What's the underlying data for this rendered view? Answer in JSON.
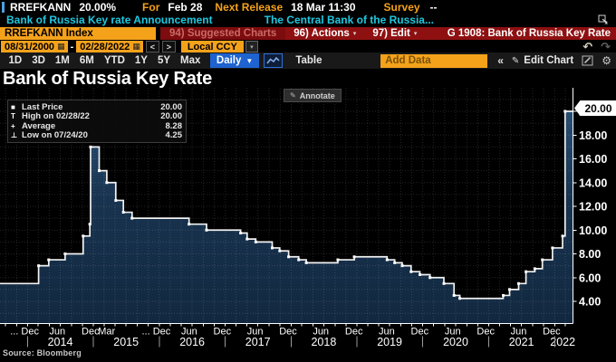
{
  "titlebar": {
    "ticker": "RREFKANN",
    "price": "20.00%",
    "for_label": "For",
    "for_value": "Feb 28",
    "next_release_label": "Next Release",
    "next_release_value": "18 Mar 11:30",
    "survey_label": "Survey",
    "survey_value": "--",
    "description": "Bank of Russia Key rate Announcement",
    "description2": "The Central Bank of the Russia..."
  },
  "menubar": {
    "security": "RREFKANN Index",
    "suggested_charts": "94) Suggested Charts",
    "actions": "96) Actions",
    "edit": "97) Edit",
    "chart_id": "G 1908: Bank of Russia Key Rate"
  },
  "controls": {
    "date_from": "08/31/2000",
    "date_sep": "-",
    "date_to": "02/28/2022",
    "currency": "Local CCY",
    "periods": [
      "1D",
      "3D",
      "1M",
      "6M",
      "YTD",
      "1Y",
      "5Y",
      "Max"
    ],
    "frequency": "Daily",
    "table_label": "Table",
    "add_data_placeholder": "Add Data",
    "edit_chart_label": "Edit Chart"
  },
  "icons": {
    "calendar": "▦",
    "dropdown_small": "▾",
    "menu_caret": "▾",
    "freq_caret": "▼",
    "chevron_left": "<",
    "chevron_right": ">",
    "undo": "↶",
    "redo": "↷",
    "collapse": "«",
    "pencil": "✎",
    "gear": "⚙"
  },
  "chart": {
    "title": "Bank of Russia Key Rate",
    "annotate_label": "Annotate",
    "last_price_tag": "20.00",
    "source": "Source: Bloomberg",
    "legend": [
      {
        "marker": "■",
        "label": "Last Price",
        "value": "20.00"
      },
      {
        "marker": "T",
        "label": "High on 02/28/22",
        "value": "20.00"
      },
      {
        "marker": "+",
        "label": "Average",
        "value": "8.28"
      },
      {
        "marker": "⊥",
        "label": "Low on 07/24/20",
        "value": "4.25"
      }
    ]
  },
  "colors": {
    "terminal_amber": "#f5a21b",
    "terminal_red": "#8e1011",
    "link_cyan": "#1fc8e0",
    "button_blue": "#1e63cf",
    "area_fill_top": "#2a5278",
    "area_fill_bottom": "#122840",
    "line": "#f2f2f2"
  },
  "chart_data": {
    "type": "area",
    "title": "Bank of Russia Key Rate",
    "ylabel": "",
    "xlabel": "",
    "grid": true,
    "legend_position": "top-left",
    "x_range": [
      "2013-08-01",
      "2022-04-10"
    ],
    "y_axis": {
      "ticks": [
        4,
        6,
        8,
        10,
        12,
        14,
        16,
        18,
        20
      ],
      "visible_min": 2.2,
      "visible_max": 22.0
    },
    "last_price": 20.0,
    "high": {
      "date": "02/28/22",
      "value": 20.0
    },
    "average": 8.28,
    "low": {
      "date": "07/24/20",
      "value": 4.25
    },
    "series": [
      {
        "name": "RREFKANN Index",
        "style": "step-after",
        "points": [
          [
            "2013-08-01",
            5.5
          ],
          [
            "2014-03-03",
            7.0
          ],
          [
            "2014-04-28",
            7.5
          ],
          [
            "2014-07-28",
            8.0
          ],
          [
            "2014-11-05",
            9.5
          ],
          [
            "2014-12-12",
            10.5
          ],
          [
            "2014-12-16",
            17.0
          ],
          [
            "2015-02-02",
            15.0
          ],
          [
            "2015-03-16",
            14.0
          ],
          [
            "2015-05-05",
            12.5
          ],
          [
            "2015-06-16",
            11.5
          ],
          [
            "2015-08-03",
            11.0
          ],
          [
            "2016-06-14",
            10.5
          ],
          [
            "2016-09-19",
            10.0
          ],
          [
            "2017-03-27",
            9.75
          ],
          [
            "2017-05-02",
            9.25
          ],
          [
            "2017-06-19",
            9.0
          ],
          [
            "2017-09-18",
            8.5
          ],
          [
            "2017-10-30",
            8.25
          ],
          [
            "2017-12-18",
            7.75
          ],
          [
            "2018-02-12",
            7.5
          ],
          [
            "2018-03-26",
            7.25
          ],
          [
            "2018-09-17",
            7.5
          ],
          [
            "2018-12-17",
            7.75
          ],
          [
            "2019-06-17",
            7.5
          ],
          [
            "2019-07-29",
            7.25
          ],
          [
            "2019-09-09",
            7.0
          ],
          [
            "2019-10-28",
            6.5
          ],
          [
            "2019-12-16",
            6.25
          ],
          [
            "2020-02-10",
            6.0
          ],
          [
            "2020-04-27",
            5.5
          ],
          [
            "2020-06-22",
            4.5
          ],
          [
            "2020-07-24",
            4.25
          ],
          [
            "2021-03-22",
            4.5
          ],
          [
            "2021-04-26",
            5.0
          ],
          [
            "2021-06-15",
            5.5
          ],
          [
            "2021-07-26",
            6.5
          ],
          [
            "2021-09-13",
            6.75
          ],
          [
            "2021-10-25",
            7.5
          ],
          [
            "2021-12-20",
            8.5
          ],
          [
            "2022-02-14",
            9.5
          ],
          [
            "2022-02-28",
            20.0
          ]
        ]
      }
    ],
    "x_month_labels": [
      {
        "label": "... Dec",
        "date": "2013-12-15"
      },
      {
        "label": "Jun",
        "date": "2014-06-15"
      },
      {
        "label": "Dec",
        "date": "2014-12-15"
      },
      {
        "label": "Mar",
        "date": "2015-03-15"
      },
      {
        "label": "... Dec",
        "date": "2015-12-15"
      },
      {
        "label": "Jun",
        "date": "2016-06-15"
      },
      {
        "label": "Dec",
        "date": "2016-12-15"
      },
      {
        "label": "Jun",
        "date": "2017-06-15"
      },
      {
        "label": "Dec",
        "date": "2017-12-15"
      },
      {
        "label": "Jun",
        "date": "2018-06-15"
      },
      {
        "label": "Dec",
        "date": "2018-12-15"
      },
      {
        "label": "Jun",
        "date": "2019-06-15"
      },
      {
        "label": "Dec",
        "date": "2019-12-15"
      },
      {
        "label": "Jun",
        "date": "2020-06-15"
      },
      {
        "label": "Dec",
        "date": "2020-12-15"
      },
      {
        "label": "Jun",
        "date": "2021-06-15"
      },
      {
        "label": "Dec",
        "date": "2021-12-15"
      }
    ],
    "x_year_labels": [
      {
        "label": "2014",
        "date": "2014-07-01"
      },
      {
        "label": "2015",
        "date": "2015-07-01"
      },
      {
        "label": "2016",
        "date": "2016-07-01"
      },
      {
        "label": "2017",
        "date": "2017-07-01"
      },
      {
        "label": "2018",
        "date": "2018-07-01"
      },
      {
        "label": "2019",
        "date": "2019-07-01"
      },
      {
        "label": "2020",
        "date": "2020-07-01"
      },
      {
        "label": "2021",
        "date": "2021-07-01"
      },
      {
        "label": "2022",
        "date": "2022-02-15"
      }
    ]
  }
}
